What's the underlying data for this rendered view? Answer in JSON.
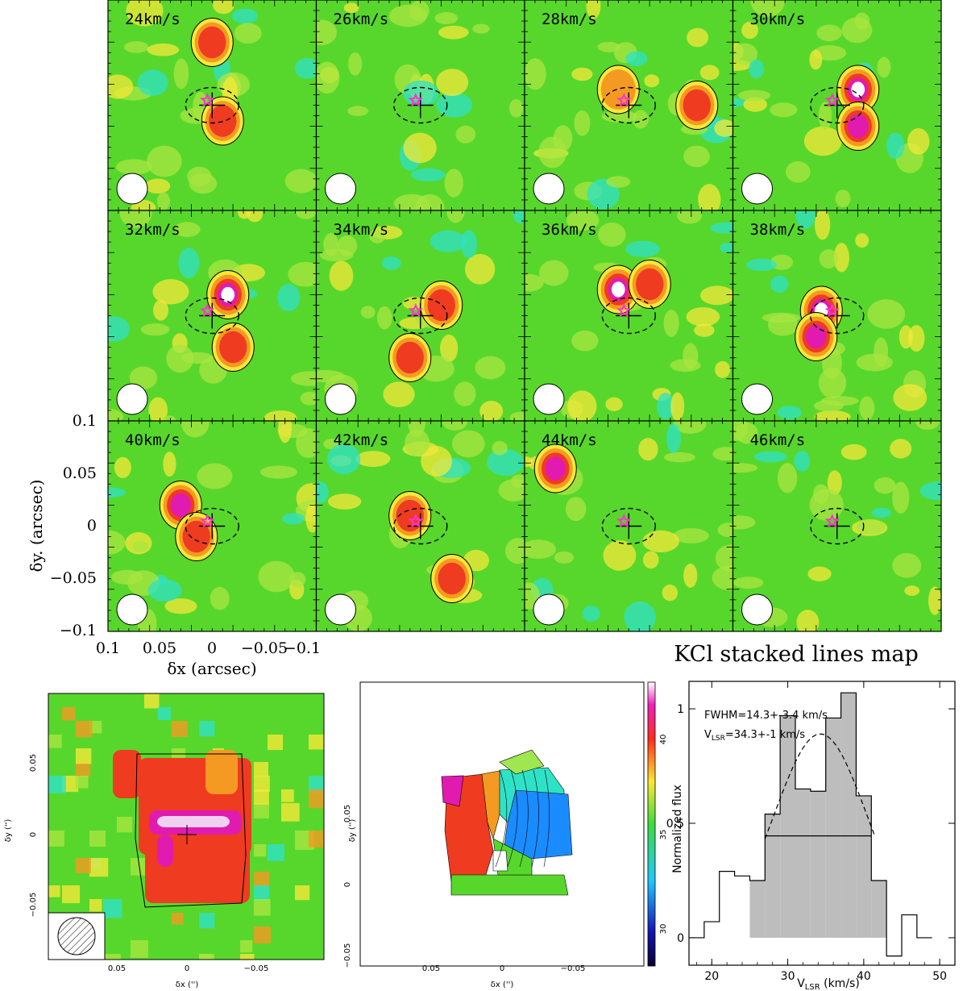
{
  "figure_title": "KCl stacked lines map",
  "colors": {
    "background_green": "#57d72c",
    "light_green": "#a8e640",
    "yellow": "#f4e83a",
    "orange": "#f49a22",
    "red": "#ef3b20",
    "magenta": "#e11bb0",
    "cyan": "#2ee2c8",
    "blue": "#1b8cff",
    "star": "#ff33cc"
  },
  "chart_data": [
    {
      "type": "heatmap",
      "name": "channel maps",
      "grid": {
        "rows": 3,
        "cols": 4
      },
      "channels": [
        {
          "label": "24km/s",
          "velocity": 24,
          "blobs": [
            {
              "x": 0.0,
              "y": 0.06,
              "level": 2
            },
            {
              "x": -0.01,
              "y": -0.015,
              "level": 2
            }
          ]
        },
        {
          "label": "26km/s",
          "velocity": 26,
          "blobs": []
        },
        {
          "label": "28km/s",
          "velocity": 28,
          "blobs": [
            {
              "x": -0.065,
              "y": 0.0,
              "level": 2
            },
            {
              "x": 0.01,
              "y": 0.015,
              "level": 1
            }
          ]
        },
        {
          "label": "30km/s",
          "velocity": 30,
          "blobs": [
            {
              "x": -0.02,
              "y": 0.015,
              "level": 4
            },
            {
              "x": -0.02,
              "y": -0.02,
              "level": 3
            }
          ]
        },
        {
          "label": "32km/s",
          "velocity": 32,
          "blobs": [
            {
              "x": -0.015,
              "y": 0.02,
              "level": 4
            },
            {
              "x": -0.02,
              "y": -0.03,
              "level": 2
            }
          ]
        },
        {
          "label": "34km/s",
          "velocity": 34,
          "blobs": [
            {
              "x": 0.01,
              "y": -0.04,
              "level": 2
            },
            {
              "x": -0.02,
              "y": 0.01,
              "level": 2
            }
          ]
        },
        {
          "label": "36km/s",
          "velocity": 36,
          "blobs": [
            {
              "x": 0.01,
              "y": 0.025,
              "level": 4
            },
            {
              "x": -0.02,
              "y": 0.03,
              "level": 2
            }
          ]
        },
        {
          "label": "38km/s",
          "velocity": 38,
          "blobs": [
            {
              "x": 0.015,
              "y": 0.005,
              "level": 5
            },
            {
              "x": 0.02,
              "y": -0.02,
              "level": 3
            }
          ]
        },
        {
          "label": "40km/s",
          "velocity": 40,
          "blobs": [
            {
              "x": 0.03,
              "y": 0.02,
              "level": 3
            },
            {
              "x": 0.015,
              "y": -0.01,
              "level": 2
            }
          ]
        },
        {
          "label": "42km/s",
          "velocity": 42,
          "blobs": [
            {
              "x": 0.01,
              "y": 0.01,
              "level": 2
            },
            {
              "x": -0.03,
              "y": -0.05,
              "level": 2
            }
          ]
        },
        {
          "label": "44km/s",
          "velocity": 44,
          "blobs": [
            {
              "x": 0.07,
              "y": 0.055,
              "level": 3
            }
          ]
        },
        {
          "label": "46km/s",
          "velocity": 46,
          "blobs": []
        }
      ],
      "xlabel": "δx (arcsec)",
      "ylabel": "δy. (arcsec)",
      "x_ticks": [
        "0.1",
        "0.05",
        "0",
        "−0.05",
        "−0.1"
      ],
      "y_ticks": [
        "0.1",
        "0.05",
        "0",
        "−0.05",
        "−0.1"
      ],
      "xlim": [
        0.1,
        -0.1
      ],
      "ylim": [
        -0.1,
        0.1
      ]
    },
    {
      "type": "heatmap",
      "name": "integrated intensity map",
      "xlabel": "δx ('')",
      "ylabel": "δy ('')",
      "x_ticks": [
        "0.05",
        "0",
        "−0.05"
      ],
      "y_ticks": [
        "0.05",
        "0",
        "−0.05"
      ],
      "xlim": [
        0.09,
        -0.09
      ],
      "ylim": [
        -0.08,
        0.09
      ]
    },
    {
      "type": "heatmap",
      "name": "velocity map",
      "xlabel": "δx ('')",
      "ylabel": "δy ('')",
      "x_ticks": [
        "0.05",
        "0",
        "−0.05"
      ],
      "y_ticks": [
        "0.05",
        "0",
        "−0.05"
      ],
      "colorbar_ticks": [
        "40",
        "35",
        "30"
      ],
      "colorbar_range": [
        27.5,
        42
      ]
    },
    {
      "type": "bar",
      "name": "stacked spectrum",
      "xlabel": "V",
      "xlabel_sub": "LSR",
      "xlabel_unit": " (km/s)",
      "ylabel": "Normalized flux",
      "xlim": [
        17,
        52
      ],
      "ylim": [
        -0.12,
        1.12
      ],
      "x_ticks": [
        20,
        30,
        40,
        50
      ],
      "y_ticks": [
        0,
        0.5,
        1
      ],
      "bin_width": 2,
      "bins": [
        {
          "x": 17,
          "y": 0.0
        },
        {
          "x": 19,
          "y": 0.07
        },
        {
          "x": 21,
          "y": 0.29
        },
        {
          "x": 23,
          "y": 0.27
        },
        {
          "x": 25,
          "y": 0.25
        },
        {
          "x": 27,
          "y": 0.54
        },
        {
          "x": 29,
          "y": 0.97
        },
        {
          "x": 31,
          "y": 0.65
        },
        {
          "x": 33,
          "y": 0.64
        },
        {
          "x": 35,
          "y": 0.96
        },
        {
          "x": 37,
          "y": 1.07
        },
        {
          "x": 39,
          "y": 0.62
        },
        {
          "x": 41,
          "y": 0.25
        },
        {
          "x": 43,
          "y": -0.08
        },
        {
          "x": 45,
          "y": 0.1
        },
        {
          "x": 47,
          "y": 0.0
        }
      ],
      "shaded_range": [
        25,
        43
      ],
      "gaussian": {
        "amplitude": 0.89,
        "center": 34.3,
        "fwhm": 14.3
      },
      "fwhm_line": {
        "x": [
          27,
          41
        ],
        "y": 0.445
      },
      "annotation_fwhm": "FWHM=14.3+-3.4 km/s",
      "annotation_vlsr_label": "V",
      "annotation_vlsr_sub": "LSR",
      "annotation_vlsr_value": "=34.3+-1 km/s"
    }
  ]
}
